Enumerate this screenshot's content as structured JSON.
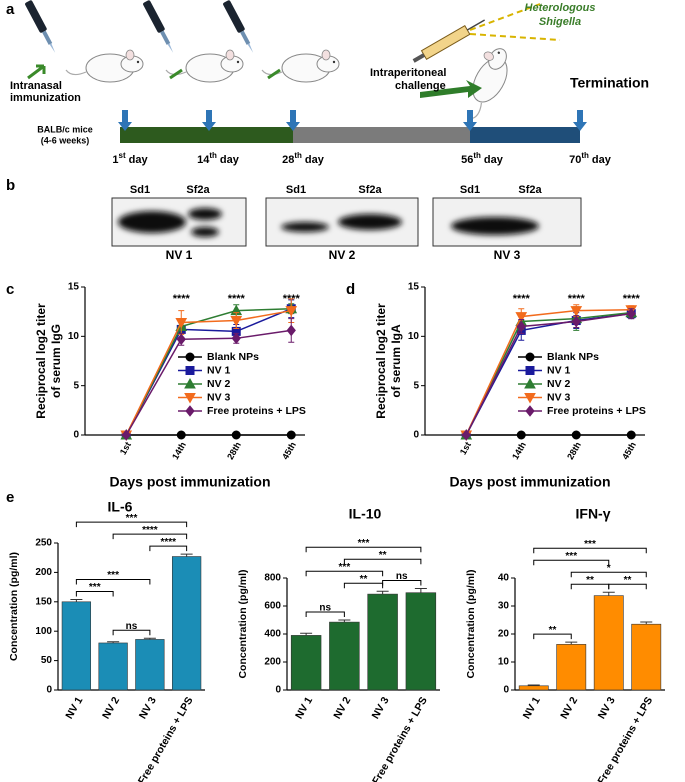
{
  "panel_labels": [
    "a",
    "b",
    "c",
    "d",
    "e"
  ],
  "timeline": {
    "pathogen": [
      "Heterologous",
      "Shigella"
    ],
    "immunization": [
      "Intranasal",
      "immunization"
    ],
    "challenge": [
      "Intraperitoneal",
      "challenge"
    ],
    "termination": "Termination",
    "mice": [
      "BALB/c mice",
      "(4-6 weeks)"
    ],
    "days": [
      {
        "n": "1",
        "sup": "st",
        "unit": "day"
      },
      {
        "n": "14",
        "sup": "th",
        "unit": "day"
      },
      {
        "n": "28",
        "sup": "th",
        "unit": "day"
      },
      {
        "n": "56",
        "sup": "th",
        "unit": "day"
      },
      {
        "n": "70",
        "sup": "th",
        "unit": "day"
      }
    ]
  },
  "blots": [
    {
      "lanes": [
        "Sd1",
        "Sf2a"
      ],
      "label": "NV 1"
    },
    {
      "lanes": [
        "Sd1",
        "Sf2a"
      ],
      "label": "NV 2"
    },
    {
      "lanes": [
        "Sd1",
        "Sf2a"
      ],
      "label": "NV 3"
    }
  ],
  "chart_data": [
    {
      "type": "line",
      "ylabel": [
        "Reciprocal log2 titer",
        "of serum IgG"
      ],
      "xlabel": "Days post immunization",
      "categories": [
        "1st",
        "14th",
        "28th",
        "45th"
      ],
      "ylim": [
        0,
        15
      ],
      "yticks": [
        0,
        5,
        10,
        15
      ],
      "annotations": [
        null,
        "****",
        "****",
        "****"
      ],
      "legend": "right",
      "series": [
        {
          "name": "Blank NPs",
          "color": "#000000",
          "marker": "circle",
          "values": [
            0,
            0,
            0,
            0
          ],
          "errors": [
            0,
            0,
            0,
            0
          ]
        },
        {
          "name": "NV 1",
          "color": "#1a1a9c",
          "marker": "square",
          "values": [
            0,
            10.7,
            10.5,
            12.8
          ],
          "errors": [
            0,
            0.8,
            0.7,
            0.9
          ]
        },
        {
          "name": "NV 2",
          "color": "#2e7d32",
          "marker": "triangle-up",
          "values": [
            0,
            11,
            12.6,
            12.8
          ],
          "errors": [
            0,
            0.7,
            0.6,
            0.5
          ]
        },
        {
          "name": "NV 3",
          "color": "#f26b1d",
          "marker": "triangle-down",
          "values": [
            0,
            11.4,
            11.6,
            12.6
          ],
          "errors": [
            0,
            1.2,
            0.8,
            1.2
          ]
        },
        {
          "name": "Free proteins + LPS",
          "color": "#6a1b6a",
          "marker": "diamond",
          "values": [
            0,
            9.7,
            9.8,
            10.6
          ],
          "errors": [
            0,
            0.6,
            0.5,
            1.2
          ]
        }
      ]
    },
    {
      "type": "line",
      "ylabel": [
        "Reciprocal log2 titer",
        "of serum IgA"
      ],
      "xlabel": "Days post immunization",
      "categories": [
        "1st",
        "14th",
        "28th",
        "45th"
      ],
      "ylim": [
        0,
        15
      ],
      "yticks": [
        0,
        5,
        10,
        15
      ],
      "annotations": [
        null,
        "****",
        "****",
        "****"
      ],
      "legend": "right",
      "series": [
        {
          "name": "Blank NPs",
          "color": "#000000",
          "marker": "circle",
          "values": [
            0,
            0,
            0,
            0
          ],
          "errors": [
            0,
            0,
            0,
            0
          ]
        },
        {
          "name": "NV 1",
          "color": "#1a1a9c",
          "marker": "square",
          "values": [
            0,
            10.6,
            11.6,
            12.3
          ],
          "errors": [
            0,
            1,
            0.8,
            0.5
          ]
        },
        {
          "name": "NV 2",
          "color": "#2e7d32",
          "marker": "triangle-up",
          "values": [
            0,
            11.5,
            11.8,
            12.4
          ],
          "errors": [
            0,
            0.8,
            1.2,
            0.5
          ]
        },
        {
          "name": "NV 3",
          "color": "#f26b1d",
          "marker": "triangle-down",
          "values": [
            0,
            12,
            12.6,
            12.7
          ],
          "errors": [
            0,
            0.8,
            0.6,
            0.4
          ]
        },
        {
          "name": "Free proteins + LPS",
          "color": "#6a1b6a",
          "marker": "diamond",
          "values": [
            0,
            11,
            11.5,
            12.3
          ],
          "errors": [
            0,
            0.7,
            0.6,
            0.5
          ]
        }
      ]
    },
    {
      "type": "bar",
      "title": "IL-6",
      "ylabel": "Concentration (pg/ml)",
      "color": "#1b8db6",
      "categories": [
        "NV 1",
        "NV 2",
        "NV 3",
        "Free proteins + LPS"
      ],
      "values": [
        150,
        80,
        86,
        227
      ],
      "errors": [
        4,
        2,
        2,
        4
      ],
      "ylim": [
        0,
        250
      ],
      "yticks": [
        0,
        50,
        100,
        150,
        200,
        250
      ],
      "comparisons": [
        {
          "from": 0,
          "to": 1,
          "label": "***"
        },
        {
          "from": 1,
          "to": 2,
          "label": "ns"
        },
        {
          "from": 0,
          "to": 2,
          "label": "***"
        },
        {
          "from": 2,
          "to": 3,
          "label": "****"
        },
        {
          "from": 1,
          "to": 3,
          "label": "****"
        },
        {
          "from": 0,
          "to": 3,
          "label": "***"
        }
      ]
    },
    {
      "type": "bar",
      "title": "IL-10",
      "ylabel": "Concentration (pg/ml)",
      "color": "#1e6b2f",
      "categories": [
        "NV 1",
        "NV 2",
        "NV 3",
        "Free proteins + LPS"
      ],
      "values": [
        390,
        485,
        685,
        695
      ],
      "errors": [
        15,
        15,
        20,
        30
      ],
      "ylim": [
        0,
        800
      ],
      "yticks": [
        0,
        200,
        400,
        600,
        800
      ],
      "comparisons": [
        {
          "from": 0,
          "to": 1,
          "label": "ns"
        },
        {
          "from": 1,
          "to": 2,
          "label": "**"
        },
        {
          "from": 2,
          "to": 3,
          "label": "ns"
        },
        {
          "from": 0,
          "to": 2,
          "label": "***"
        },
        {
          "from": 1,
          "to": 3,
          "label": "**"
        },
        {
          "from": 0,
          "to": 3,
          "label": "***"
        }
      ]
    },
    {
      "type": "bar",
      "title": "IFN-γ",
      "ylabel": "Concentration (pg/ml)",
      "color": "#ff8c00",
      "categories": [
        "NV 1",
        "NV 2",
        "NV 3",
        "Free proteins + LPS"
      ],
      "values": [
        1.5,
        16.3,
        33.7,
        23.5
      ],
      "errors": [
        0.3,
        0.8,
        1.2,
        0.8
      ],
      "ylim": [
        0,
        40
      ],
      "yticks": [
        0,
        10,
        20,
        30,
        40
      ],
      "comparisons": [
        {
          "from": 0,
          "to": 1,
          "label": "**"
        },
        {
          "from": 1,
          "to": 2,
          "label": "**"
        },
        {
          "from": 2,
          "to": 3,
          "label": "**"
        },
        {
          "from": 1,
          "to": 3,
          "label": "*"
        },
        {
          "from": 0,
          "to": 2,
          "label": "***"
        },
        {
          "from": 0,
          "to": 3,
          "label": "***"
        }
      ]
    }
  ]
}
